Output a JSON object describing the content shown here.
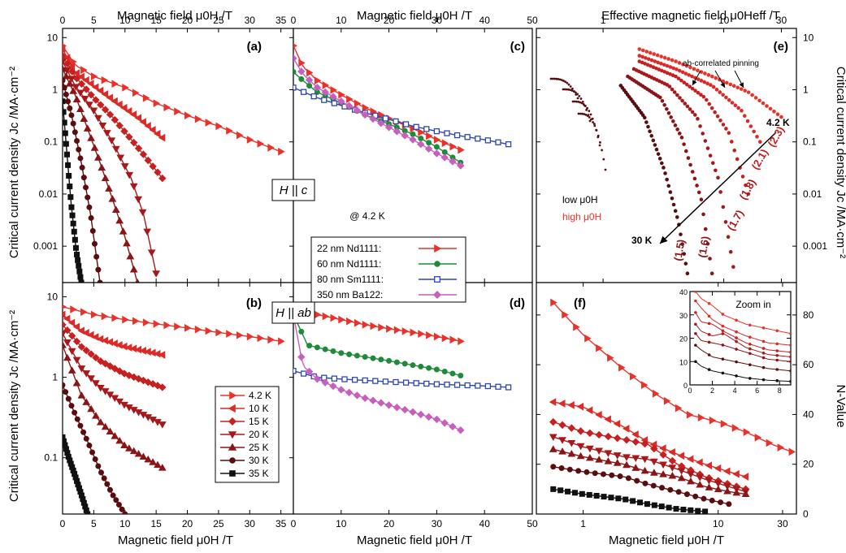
{
  "figure": {
    "top_x_left": "Magnetic field μ0H /T",
    "top_x_mid": "Magnetic field μ0H /T",
    "top_x_right": "Effective magnetic field μ0Heff /T",
    "bottom_x": "Magnetic field μ0H /T",
    "left_y_top": "Critical current density Jc /MA·cm⁻²",
    "left_y_bottom": "Critical current density Jc /MA·cm⁻²",
    "right_y_top": "Critical current density Jc /MA·cm⁻²",
    "right_y_bottom": "N-Value",
    "orient_c": "H || c",
    "orient_ab": "H || ab",
    "at_temp": "@ 4.2 K",
    "arrow_top": "4.2 K",
    "arrow_bottom": "30 K",
    "pinning": "ab-correlated pinning",
    "low_label": "low μ0H",
    "high_label": "high μ0H",
    "zoom": "Zoom in",
    "slopes": [
      "(2.3)",
      "(2.1)",
      "(1.8)",
      "(1.7)",
      "(1.6)",
      "(1.5)"
    ]
  },
  "colors": {
    "t4": "#e8322a",
    "t10": "#dc2a26",
    "t15": "#c81f1f",
    "t20": "#a8181b",
    "t25": "#8a1416",
    "t30": "#5a0d0f",
    "t35": "#111111",
    "nd60": "#1f8a3a",
    "sm80": "#2b48b0",
    "ba122": "#c85fbf"
  },
  "chart_data": [
    {
      "panel": "(a)",
      "type": "line",
      "title": "",
      "xlabel": "Magnetic field μ0H /T",
      "ylabel": "Critical current density Jc /MA·cm⁻²",
      "xlim": [
        0,
        37
      ],
      "ylim": [
        0.0002,
        15
      ],
      "yscale": "log",
      "xticks": [
        "0",
        "5",
        "10",
        "15",
        "20",
        "25",
        "30",
        "35"
      ],
      "yticks": [
        "0.001",
        "0.01",
        "0.1",
        "1",
        "10"
      ],
      "series": [
        {
          "name": "4.2 K",
          "color": "t4",
          "marker": "tri-right",
          "x": [
            0,
            2,
            5,
            10,
            15,
            20,
            25,
            30,
            35
          ],
          "y": [
            7,
            3,
            1.8,
            1.1,
            0.55,
            0.32,
            0.2,
            0.11,
            0.065
          ]
        },
        {
          "name": "10 K",
          "color": "t10",
          "marker": "tri-left",
          "x": [
            0,
            2,
            5,
            8,
            12,
            16
          ],
          "y": [
            6,
            2.2,
            1.2,
            0.65,
            0.3,
            0.12
          ]
        },
        {
          "name": "15 K",
          "color": "t15",
          "marker": "diamond",
          "x": [
            0,
            2,
            5,
            8,
            12,
            16
          ],
          "y": [
            4.5,
            1.8,
            0.7,
            0.3,
            0.08,
            0.02
          ]
        },
        {
          "name": "20 K",
          "color": "t20",
          "marker": "tri-down",
          "x": [
            0,
            2,
            5,
            8,
            11,
            13,
            15
          ],
          "y": [
            3.5,
            1.2,
            0.4,
            0.1,
            0.02,
            0.004,
            0.0003
          ]
        },
        {
          "name": "25 K",
          "color": "t25",
          "marker": "tri-up",
          "x": [
            0,
            2,
            4,
            6,
            8,
            10,
            12
          ],
          "y": [
            2.5,
            0.8,
            0.18,
            0.04,
            0.008,
            0.0015,
            0.0002
          ]
        },
        {
          "name": "30 K",
          "color": "t30",
          "marker": "circle",
          "x": [
            0,
            1.5,
            3,
            4.5,
            6
          ],
          "y": [
            1.5,
            0.3,
            0.04,
            0.004,
            0.0002
          ]
        },
        {
          "name": "35 K",
          "color": "t35",
          "marker": "square",
          "x": [
            0,
            0.7,
            1.4,
            2.2,
            3
          ],
          "y": [
            0.6,
            0.06,
            0.006,
            0.0008,
            0.0002
          ]
        }
      ]
    },
    {
      "panel": "(b)",
      "type": "line",
      "title": "",
      "xlabel": "Magnetic field μ0H /T",
      "ylabel": "Critical current density Jc /MA·cm⁻²",
      "xlim": [
        0,
        37
      ],
      "ylim": [
        0.02,
        15
      ],
      "yscale": "log",
      "xticks": [
        "0",
        "5",
        "10",
        "15",
        "20",
        "25",
        "30",
        "35"
      ],
      "yticks": [
        "0.1",
        "1",
        "10"
      ],
      "series": [
        {
          "name": "4.2 K",
          "color": "t4",
          "marker": "tri-right",
          "x": [
            0,
            5,
            10,
            15,
            20,
            25,
            30,
            35
          ],
          "y": [
            7.5,
            6,
            5.2,
            4.6,
            4.1,
            3.6,
            3.2,
            2.8
          ]
        },
        {
          "name": "10 K",
          "color": "t10",
          "marker": "tri-left",
          "x": [
            0,
            3,
            6,
            10,
            16
          ],
          "y": [
            6,
            3.8,
            3,
            2.4,
            1.9
          ]
        },
        {
          "name": "15 K",
          "color": "t15",
          "marker": "diamond",
          "x": [
            0,
            3,
            6,
            10,
            16
          ],
          "y": [
            4.5,
            2.4,
            1.6,
            1.1,
            0.75
          ]
        },
        {
          "name": "20 K",
          "color": "t20",
          "marker": "tri-down",
          "x": [
            0,
            3,
            6,
            10,
            16
          ],
          "y": [
            3.5,
            1.3,
            0.75,
            0.45,
            0.26
          ]
        },
        {
          "name": "25 K",
          "color": "t25",
          "marker": "tri-up",
          "x": [
            0,
            3,
            6,
            10,
            16
          ],
          "y": [
            2.5,
            0.6,
            0.28,
            0.14,
            0.075
          ]
        },
        {
          "name": "30 K",
          "color": "t30",
          "marker": "circle",
          "x": [
            0,
            2,
            4,
            6,
            8,
            10
          ],
          "y": [
            0.8,
            0.35,
            0.16,
            0.07,
            0.035,
            0.02
          ]
        },
        {
          "name": "35 K",
          "color": "t35",
          "marker": "square",
          "x": [
            0,
            1,
            2,
            3,
            4
          ],
          "y": [
            0.18,
            0.1,
            0.06,
            0.035,
            0.02
          ]
        }
      ]
    },
    {
      "panel": "(c)",
      "type": "line",
      "title": "",
      "xlabel": "Magnetic field μ0H /T",
      "ylabel": "",
      "xlim": [
        0,
        50
      ],
      "ylim": [
        0.0002,
        15
      ],
      "yscale": "log",
      "xticks": [
        "0",
        "10",
        "20",
        "30",
        "40",
        "50"
      ],
      "series": [
        {
          "name": "22 nm Nd1111:",
          "color": "t4",
          "marker": "tri-right",
          "x": [
            0,
            2,
            5,
            10,
            15,
            20,
            25,
            30,
            35
          ],
          "y": [
            7,
            2.8,
            1.5,
            0.8,
            0.45,
            0.28,
            0.18,
            0.11,
            0.07
          ]
        },
        {
          "name": "60 nm Nd1111:",
          "color": "nd60",
          "marker": "circle",
          "x": [
            0,
            2,
            5,
            10,
            15,
            20,
            25,
            30,
            35
          ],
          "y": [
            2.2,
            1.5,
            0.9,
            0.55,
            0.33,
            0.22,
            0.14,
            0.08,
            0.04
          ]
        },
        {
          "name": "80 nm Sm1111:",
          "color": "sm80",
          "marker": "square-open",
          "x": [
            0,
            5,
            10,
            15,
            20,
            25,
            30,
            35,
            40,
            45
          ],
          "y": [
            1.1,
            0.7,
            0.5,
            0.36,
            0.27,
            0.2,
            0.16,
            0.13,
            0.11,
            0.09
          ]
        },
        {
          "name": "350 nm Ba122:",
          "color": "ba122",
          "marker": "diamond",
          "x": [
            0,
            2,
            5,
            10,
            15,
            20,
            25,
            30,
            35
          ],
          "y": [
            4,
            2,
            1.1,
            0.6,
            0.33,
            0.19,
            0.11,
            0.06,
            0.035
          ]
        }
      ]
    },
    {
      "panel": "(d)",
      "type": "line",
      "title": "",
      "xlabel": "Magnetic field μ0H /T",
      "ylabel": "",
      "xlim": [
        0,
        50
      ],
      "ylim": [
        0.02,
        15
      ],
      "yscale": "log",
      "xticks": [
        "0",
        "10",
        "20",
        "30",
        "40",
        "50"
      ],
      "series": [
        {
          "name": "22 nm Nd1111:",
          "color": "t4",
          "marker": "tri-right",
          "x": [
            0,
            5,
            10,
            15,
            20,
            25,
            30,
            35
          ],
          "y": [
            7.5,
            6,
            5.2,
            4.5,
            4,
            3.6,
            3.2,
            2.8
          ]
        },
        {
          "name": "60 nm Nd1111:",
          "color": "nd60",
          "marker": "circle",
          "x": [
            0,
            3,
            10,
            20,
            30,
            35
          ],
          "y": [
            6,
            2.5,
            2,
            1.6,
            1.25,
            1.05
          ]
        },
        {
          "name": "80 nm Sm1111:",
          "color": "sm80",
          "marker": "square-open",
          "x": [
            0,
            5,
            10,
            20,
            30,
            40,
            45
          ],
          "y": [
            1.2,
            1,
            0.95,
            0.88,
            0.82,
            0.78,
            0.75
          ]
        },
        {
          "name": "350 nm Ba122:",
          "color": "ba122",
          "marker": "diamond",
          "x": [
            0,
            2,
            5,
            10,
            15,
            20,
            25,
            30,
            35
          ],
          "y": [
            6,
            1.4,
            0.95,
            0.7,
            0.55,
            0.45,
            0.37,
            0.3,
            0.22
          ]
        }
      ]
    },
    {
      "panel": "(e)",
      "type": "scatter",
      "title": "",
      "xlabel": "Effective magnetic field μ0Heff /T",
      "ylabel": "Critical current density Jc /MA·cm⁻²",
      "xlim": [
        0.28,
        40
      ],
      "ylim": [
        0.0002,
        15
      ],
      "xscale": "log",
      "yscale": "log",
      "xticks": [
        "1",
        "10",
        "30"
      ],
      "yticks": [
        "0.001",
        "0.01",
        "0.1",
        "1",
        "10"
      ],
      "series": [
        {
          "name": "4.2 K",
          "color": "t4",
          "x": [
            2,
            4,
            8,
            16,
            30
          ],
          "y": [
            6,
            3.5,
            1.8,
            0.9,
            0.3
          ]
        },
        {
          "name": "10 K",
          "color": "t10",
          "x": [
            2,
            4,
            8,
            14,
            20
          ],
          "y": [
            4.5,
            2.5,
            1.2,
            0.4,
            0.1
          ]
        },
        {
          "name": "15 K",
          "color": "t15",
          "x": [
            2,
            4,
            7,
            11,
            16
          ],
          "y": [
            3.5,
            1.8,
            0.7,
            0.15,
            0.01
          ]
        },
        {
          "name": "20 K",
          "color": "t20",
          "x": [
            1.8,
            3.5,
            6,
            9,
            12
          ],
          "y": [
            2.5,
            1.2,
            0.3,
            0.02,
            0.0004
          ]
        },
        {
          "name": "25 K",
          "color": "t25",
          "x": [
            1.6,
            3,
            4.5,
            6.5,
            8
          ],
          "y": [
            1.8,
            0.7,
            0.12,
            0.008,
            0.0003
          ]
        },
        {
          "name": "30 K",
          "color": "t30",
          "x": [
            1.4,
            2.2,
            3.2,
            4.2,
            5
          ],
          "y": [
            1.2,
            0.3,
            0.03,
            0.003,
            0.0003
          ]
        }
      ]
    },
    {
      "panel": "(f)",
      "type": "line",
      "title": "",
      "xlabel": "Magnetic field μ0H /T",
      "ylabel": "N-Value",
      "xlim": [
        0.45,
        38
      ],
      "ylim": [
        0,
        93
      ],
      "xscale": "log",
      "xticks": [
        "1",
        "10",
        "30"
      ],
      "yticks": [
        "0",
        "20",
        "40",
        "60",
        "80"
      ],
      "series": [
        {
          "name": "4.2 K",
          "color": "t4",
          "marker": "tri-right",
          "x": [
            0.6,
            1,
            2,
            3.5,
            6,
            10,
            16,
            25,
            35
          ],
          "y": [
            85,
            72,
            58,
            48,
            40,
            37,
            33,
            28,
            25
          ]
        },
        {
          "name": "10 K",
          "color": "t10",
          "marker": "tri-left",
          "x": [
            0.6,
            1,
            2,
            3,
            5,
            8,
            12,
            16
          ],
          "y": [
            45,
            43,
            35,
            29,
            24,
            20,
            17,
            15
          ]
        },
        {
          "name": "15 K",
          "color": "t15",
          "marker": "diamond",
          "x": [
            0.6,
            1,
            2,
            3,
            5,
            8,
            12,
            16
          ],
          "y": [
            37,
            33,
            30,
            28,
            20,
            15,
            12,
            10
          ]
        },
        {
          "name": "20 K",
          "color": "t20",
          "marker": "tri-down",
          "x": [
            0.6,
            1,
            2,
            3,
            5,
            8,
            12,
            16
          ],
          "y": [
            31,
            27,
            23,
            22,
            18,
            14,
            11,
            9
          ]
        },
        {
          "name": "25 K",
          "color": "t25",
          "marker": "tri-up",
          "x": [
            0.6,
            1,
            2,
            3,
            5,
            8,
            12,
            16
          ],
          "y": [
            26,
            23,
            20,
            17,
            15,
            11,
            9,
            8
          ]
        },
        {
          "name": "30 K",
          "color": "t30",
          "marker": "circle",
          "x": [
            0.6,
            1,
            2,
            3,
            5,
            8,
            12
          ],
          "y": [
            19,
            17,
            15,
            12,
            9,
            6,
            4
          ]
        },
        {
          "name": "35 K",
          "color": "t35",
          "marker": "square",
          "x": [
            0.6,
            1,
            2,
            3,
            5,
            8
          ],
          "y": [
            10,
            8,
            6,
            4,
            2,
            1
          ]
        }
      ]
    },
    {
      "panel": "inset",
      "type": "line",
      "title": "Zoom in",
      "xlim": [
        0,
        9
      ],
      "ylim": [
        0,
        40
      ],
      "xticks": [
        "0",
        "2",
        "4",
        "6",
        "8"
      ],
      "yticks": [
        "0",
        "10",
        "20",
        "30",
        "40"
      ],
      "series": [
        {
          "color": "t4",
          "x": [
            0.5,
            1,
            2,
            3,
            5,
            7,
            9
          ],
          "y": [
            40,
            37,
            34,
            30,
            26,
            24,
            22
          ]
        },
        {
          "color": "t10",
          "x": [
            0.5,
            1,
            2,
            3,
            5,
            7,
            9
          ],
          "y": [
            36,
            33,
            28,
            25,
            21,
            18,
            17
          ]
        },
        {
          "color": "t15",
          "x": [
            0.5,
            1,
            2,
            3,
            5,
            7,
            9
          ],
          "y": [
            31,
            27,
            26,
            23,
            18,
            15,
            14
          ]
        },
        {
          "color": "t20",
          "x": [
            0.5,
            1,
            2,
            3,
            5,
            7,
            9
          ],
          "y": [
            26,
            23,
            21,
            22,
            16,
            13,
            12
          ]
        },
        {
          "color": "t25",
          "x": [
            0.5,
            1,
            2,
            3,
            5,
            7,
            9
          ],
          "y": [
            22,
            19,
            18,
            17,
            14,
            11,
            10
          ]
        },
        {
          "color": "t30",
          "x": [
            0.5,
            1,
            2,
            3,
            5,
            7,
            9
          ],
          "y": [
            17,
            15,
            12,
            11,
            9,
            7,
            6
          ]
        },
        {
          "color": "t35",
          "x": [
            0.5,
            1,
            2,
            3,
            5,
            7,
            9
          ],
          "y": [
            10,
            8,
            6,
            5,
            3,
            2,
            1.5
          ]
        }
      ]
    }
  ],
  "legend_temps": [
    "4.2 K",
    "10 K",
    "15 K",
    "20 K",
    "25 K",
    "30 K",
    "35 K"
  ],
  "legend_films": [
    "22 nm Nd1111:",
    "60 nm Nd1111:",
    "80 nm Sm1111:",
    "350 nm Ba122:"
  ]
}
